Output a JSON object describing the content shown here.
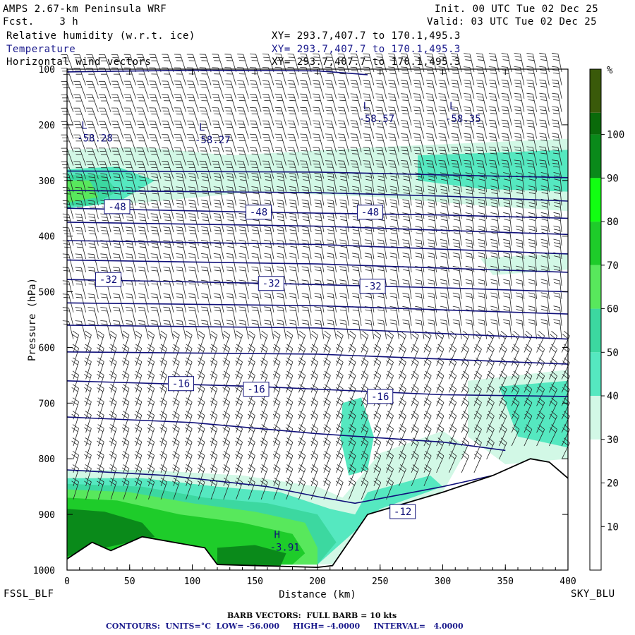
{
  "header": {
    "title": "AMPS 2.67-km Peninsula WRF",
    "forecast": "Fcst.    3 h",
    "init": "Init. 00 UTC Tue 02 Dec 25",
    "valid": "Valid: 03 UTC Tue 02 Dec 25",
    "field1": "Relative humidity (w.r.t. ice)",
    "field2": "Temperature",
    "field3": "Horizontal wind vectors",
    "xy1": "XY= 293.7,407.7 to 170.1,495.3",
    "xy2": "XY= 293.7,407.7 to 170.1,495.3",
    "xy3": "XY= 293.7,407.7 to 170.1,495.3"
  },
  "footer": {
    "left_station": "FSSL_BLF",
    "right_station": "SKY_BLU",
    "barb_note": "BARB VECTORS:  FULL BARB = 10 kts",
    "contour_note": "CONTOURS:  UNITS=°C  LOW= -56.000     HIGH= -4.0000     INTERVAL=   4.0000"
  },
  "colors": {
    "contour": "#10107a",
    "rh_30": "#d2f8e6",
    "rh_40": "#55e8c0",
    "rh_50": "#3cd8a0",
    "rh_60": "#58e85c",
    "rh_70": "#1ecc2a",
    "rh_80": "#12ff12",
    "rh_90": "#0a8a1a",
    "rh_100": "#0a6a0a",
    "rh_top": "#3a5a0a"
  },
  "chart_data": {
    "type": "cross-section",
    "title": "Relative humidity (w.r.t. ice), Temperature, Horizontal wind vectors",
    "xlabel": "Distance (km)",
    "ylabel": "Pressure (hPa)",
    "xlim": [
      0,
      400
    ],
    "ylim": [
      1000,
      100
    ],
    "x_ticks": [
      0,
      50,
      100,
      150,
      200,
      250,
      300,
      350,
      400
    ],
    "y_ticks": [
      100,
      200,
      300,
      400,
      500,
      600,
      700,
      800,
      900,
      1000
    ],
    "colorbar": {
      "unit": "%",
      "levels": [
        10,
        20,
        30,
        40,
        50,
        60,
        70,
        80,
        90,
        100
      ],
      "labels": [
        "10",
        "20",
        "30",
        "40",
        "50",
        "60",
        "70",
        "80",
        "90",
        "100"
      ]
    },
    "temperature_contours": [
      {
        "label": "-48",
        "x": 40,
        "p": 347
      },
      {
        "label": "-48",
        "x": 153,
        "p": 357
      },
      {
        "label": "-48",
        "x": 242,
        "p": 357
      },
      {
        "label": "-32",
        "x": 33,
        "p": 478
      },
      {
        "label": "-32",
        "x": 163,
        "p": 485
      },
      {
        "label": "-32",
        "x": 244,
        "p": 490
      },
      {
        "label": "-16",
        "x": 91,
        "p": 665
      },
      {
        "label": "-16",
        "x": 151,
        "p": 675
      },
      {
        "label": "-16",
        "x": 250,
        "p": 688
      },
      {
        "label": "-12",
        "x": 268,
        "p": 895
      }
    ],
    "extrema": [
      {
        "type": "L",
        "value": "-58.28",
        "x": 8,
        "p": 225
      },
      {
        "type": "L",
        "value": "-58.27",
        "x": 102,
        "p": 228
      },
      {
        "type": "L",
        "value": "-58.57",
        "x": 233,
        "p": 190
      },
      {
        "type": "L",
        "value": "-58.35",
        "x": 302,
        "p": 190
      },
      {
        "type": "H",
        "value": "-3.91",
        "x": 162,
        "p": 960
      }
    ],
    "terrain": [
      {
        "x": 0,
        "p": 980
      },
      {
        "x": 20,
        "p": 950
      },
      {
        "x": 35,
        "p": 965
      },
      {
        "x": 60,
        "p": 940
      },
      {
        "x": 110,
        "p": 960
      },
      {
        "x": 120,
        "p": 990
      },
      {
        "x": 200,
        "p": 995
      },
      {
        "x": 212,
        "p": 992
      },
      {
        "x": 240,
        "p": 900
      },
      {
        "x": 300,
        "p": 860
      },
      {
        "x": 340,
        "p": 830
      },
      {
        "x": 370,
        "p": 800
      },
      {
        "x": 385,
        "p": 806
      },
      {
        "x": 400,
        "p": 835
      }
    ]
  }
}
